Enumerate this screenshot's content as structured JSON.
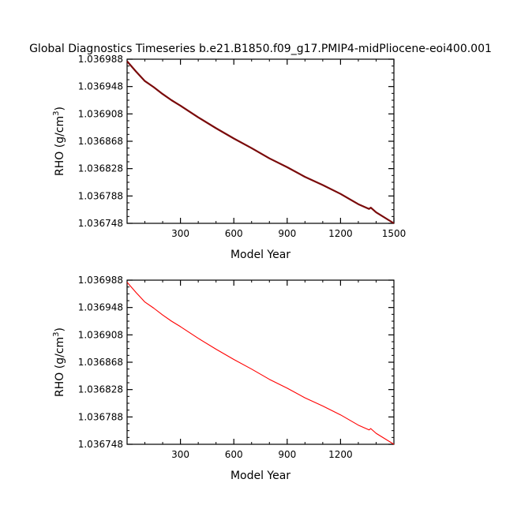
{
  "title": "Global Diagnostics Timeseries b.e21.B1850.f09_g17.PMIP4-midPliocene-eoi400.001",
  "chart_data": [
    {
      "type": "line",
      "xlabel": "Model Year",
      "ylabel_main": "RHO (g/cm",
      "ylabel_sup": "3",
      "ylabel_close": ")",
      "xlim": [
        0,
        1500
      ],
      "ylim": [
        1.036748,
        1.036988
      ],
      "x_ticks": [
        300,
        600,
        900,
        1200,
        1500
      ],
      "x_tick_labels": [
        "300",
        "600",
        "900",
        "1200",
        "1500"
      ],
      "y_ticks": [
        1.036748,
        1.036788,
        1.036828,
        1.036868,
        1.036908,
        1.036948,
        1.036988
      ],
      "y_tick_labels": [
        "1.036748",
        "1.036788",
        "1.036828",
        "1.036868",
        "1.036908",
        "1.036948",
        "1.036988"
      ],
      "series": [
        {
          "color": "#7a0a0a",
          "x": [
            0,
            50,
            100,
            150,
            200,
            250,
            300,
            400,
            500,
            600,
            700,
            800,
            900,
            1000,
            1100,
            1200,
            1300,
            1360,
            1370,
            1400,
            1500
          ],
          "y": [
            1.036985,
            1.03697,
            1.036956,
            1.036947,
            1.036937,
            1.036928,
            1.03692,
            1.036903,
            1.036887,
            1.036872,
            1.036858,
            1.036843,
            1.03683,
            1.036816,
            1.036804,
            1.036791,
            1.036776,
            1.036769,
            1.036771,
            1.036764,
            1.036748
          ]
        }
      ]
    },
    {
      "type": "line",
      "xlabel": "Model Year",
      "ylabel_main": "RHO (g/cm",
      "ylabel_sup": "3",
      "ylabel_close": ")",
      "xlim": [
        0,
        1500
      ],
      "ylim": [
        1.036748,
        1.036988
      ],
      "x_ticks": [
        300,
        600,
        900,
        1200
      ],
      "x_tick_labels": [
        "300",
        "600",
        "900",
        "1200"
      ],
      "y_ticks": [
        1.036748,
        1.036788,
        1.036828,
        1.036868,
        1.036908,
        1.036948,
        1.036988
      ],
      "y_tick_labels": [
        "1.036748",
        "1.036788",
        "1.036828",
        "1.036868",
        "1.036908",
        "1.036948",
        "1.036988"
      ],
      "series": [
        {
          "color": "#ff0000",
          "x": [
            0,
            50,
            100,
            150,
            200,
            250,
            300,
            400,
            500,
            600,
            700,
            800,
            900,
            1000,
            1100,
            1200,
            1300,
            1360,
            1370,
            1400,
            1500
          ],
          "y": [
            1.036985,
            1.03697,
            1.036956,
            1.036947,
            1.036937,
            1.036928,
            1.03692,
            1.036903,
            1.036887,
            1.036872,
            1.036858,
            1.036843,
            1.03683,
            1.036816,
            1.036804,
            1.036791,
            1.036776,
            1.036769,
            1.036771,
            1.036764,
            1.036748
          ]
        }
      ]
    }
  ]
}
